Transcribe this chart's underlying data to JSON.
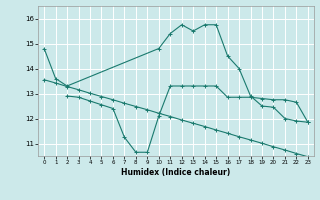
{
  "xlabel": "Humidex (Indice chaleur)",
  "background_color": "#cce9ea",
  "grid_color": "#ffffff",
  "line_color": "#1a7a6e",
  "xlim": [
    -0.5,
    23.5
  ],
  "ylim": [
    10.5,
    16.5
  ],
  "yticks": [
    11,
    12,
    13,
    14,
    15,
    16
  ],
  "xticks": [
    0,
    1,
    2,
    3,
    4,
    5,
    6,
    7,
    8,
    9,
    10,
    11,
    12,
    13,
    14,
    15,
    16,
    17,
    18,
    19,
    20,
    21,
    22,
    23
  ],
  "line1_x": [
    0,
    1,
    2,
    10,
    11,
    12,
    13,
    14,
    15,
    16,
    17,
    18,
    19,
    20,
    21,
    22,
    23
  ],
  "line1_y": [
    14.8,
    13.6,
    13.3,
    14.8,
    15.4,
    15.75,
    15.5,
    15.75,
    15.75,
    14.5,
    14.0,
    12.9,
    12.5,
    12.45,
    12.0,
    11.9,
    11.85
  ],
  "line2_x": [
    0,
    1,
    2,
    3,
    4,
    5,
    6,
    7,
    8,
    9,
    10,
    11,
    12,
    13,
    14,
    15,
    16,
    17,
    18,
    19,
    20,
    21,
    22,
    23
  ],
  "line2_y": [
    13.55,
    13.42,
    13.28,
    13.15,
    13.01,
    12.88,
    12.75,
    12.61,
    12.48,
    12.35,
    12.21,
    12.08,
    11.94,
    11.81,
    11.68,
    11.54,
    11.41,
    11.27,
    11.14,
    11.01,
    10.87,
    10.74,
    10.6,
    10.47
  ],
  "line3_x": [
    2,
    3,
    4,
    5,
    6,
    7,
    8,
    9,
    10,
    11,
    12,
    13,
    14,
    15,
    16,
    17,
    18,
    19,
    20,
    21,
    22,
    23
  ],
  "line3_y": [
    12.9,
    12.85,
    12.7,
    12.55,
    12.4,
    11.25,
    10.65,
    10.65,
    12.1,
    13.3,
    13.3,
    13.3,
    13.3,
    13.3,
    12.85,
    12.85,
    12.85,
    12.8,
    12.75,
    12.75,
    12.65,
    11.85
  ]
}
